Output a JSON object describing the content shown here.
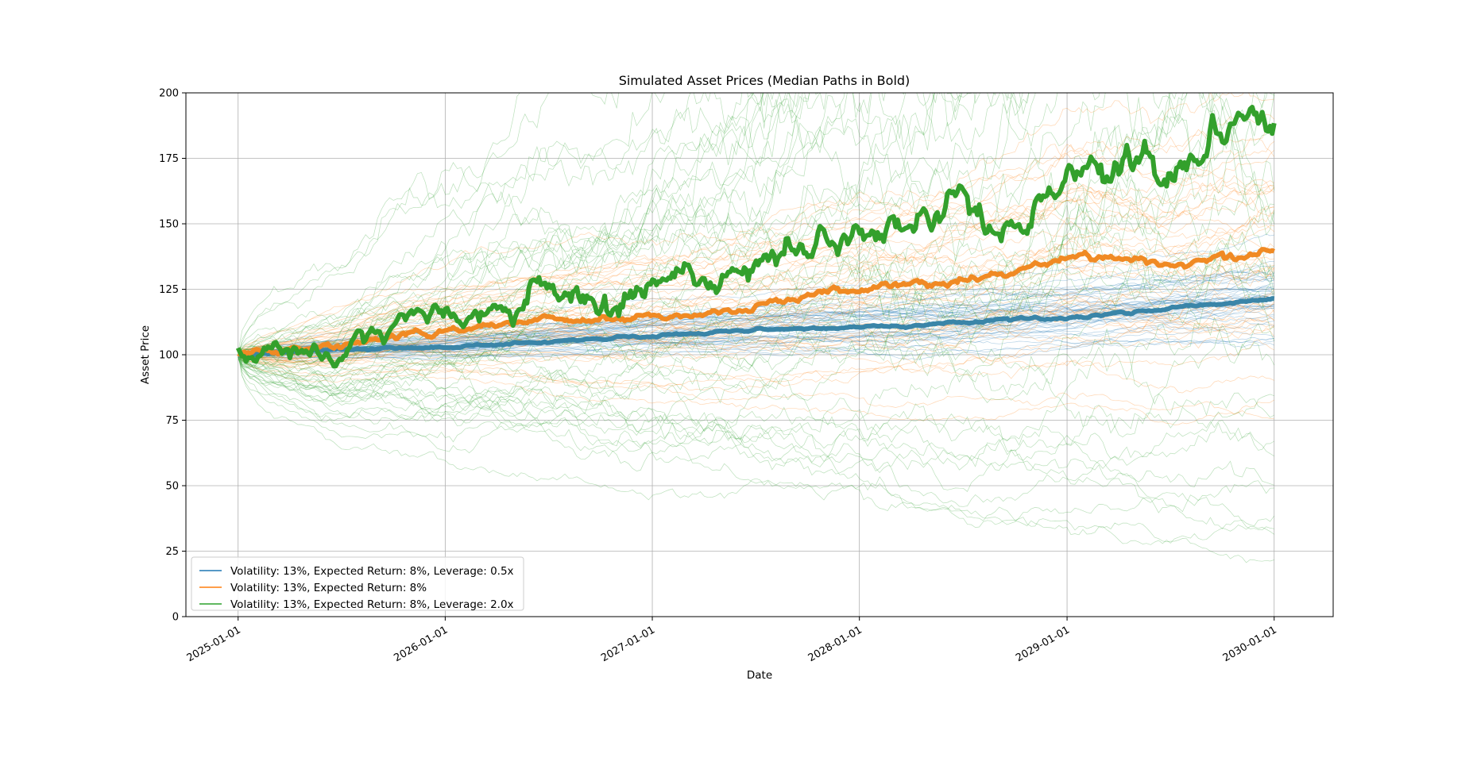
{
  "chart_data": {
    "type": "line",
    "title": "Simulated Asset Prices (Median Paths in Bold)",
    "xlabel": "Date",
    "ylabel": "Asset Price",
    "x_range": [
      "2025-01-01",
      "2030-01-01"
    ],
    "xlim": [
      "2024-10-01",
      "2030-04-15"
    ],
    "ylim": [
      0,
      200
    ],
    "x_ticks": [
      "2025-01-01",
      "2026-01-01",
      "2027-01-01",
      "2028-01-01",
      "2029-01-01",
      "2030-01-01"
    ],
    "y_ticks": [
      0,
      25,
      50,
      75,
      100,
      125,
      150,
      175,
      200
    ],
    "grid": true,
    "legend_position": "lower-left",
    "x_dates": [
      "2025-01-01",
      "2025-04-01",
      "2025-07-01",
      "2025-10-01",
      "2026-01-01",
      "2026-04-01",
      "2026-07-01",
      "2026-10-01",
      "2027-01-01",
      "2027-04-01",
      "2027-07-01",
      "2027-10-01",
      "2028-01-01",
      "2028-04-01",
      "2028-07-01",
      "2028-10-01",
      "2029-01-01",
      "2029-04-01",
      "2029-07-01",
      "2029-10-01",
      "2030-01-01"
    ],
    "series": [
      {
        "name": "Volatility: 13%, Expected Return: 8%, Leverage: 0.5x",
        "color": "#1f77b4",
        "median_color": "#3a85a8",
        "median": [
          100,
          101,
          102,
          102.5,
          103,
          104,
          105,
          106,
          107.5,
          108,
          109,
          110,
          110.5,
          111,
          112,
          113.5,
          114,
          116,
          118,
          119.5,
          121
        ],
        "band": [
          95,
          108
        ]
      },
      {
        "name": "Volatility: 13%, Expected Return: 8%",
        "color": "#ff7f0e",
        "median_color": "#f08a24",
        "median": [
          100,
          100.5,
          103,
          107,
          109,
          111,
          113,
          114,
          115,
          116,
          119,
          122,
          124,
          126,
          128,
          131,
          137,
          136,
          134,
          138,
          141
        ],
        "band": [
          88,
          120
        ]
      },
      {
        "name": "Volatility: 13%, Expected Return: 8%, Leverage: 2.0x",
        "color": "#2ca02c",
        "median_color": "#33a02c",
        "median": [
          100,
          101,
          101,
          110,
          112,
          117,
          122,
          123,
          127,
          131,
          133,
          138,
          143,
          147,
          148,
          152,
          165,
          172,
          171,
          187,
          183
        ],
        "band": [
          65,
          185
        ]
      }
    ]
  }
}
